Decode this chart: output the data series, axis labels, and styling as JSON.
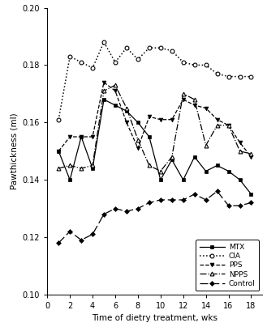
{
  "x": [
    1,
    2,
    3,
    4,
    5,
    6,
    7,
    8,
    9,
    10,
    11,
    12,
    13,
    14,
    15,
    16,
    17,
    18
  ],
  "MTX": [
    0.15,
    0.14,
    0.155,
    0.144,
    0.168,
    0.166,
    0.164,
    0.16,
    0.155,
    0.14,
    0.147,
    0.14,
    0.148,
    0.143,
    0.145,
    0.143,
    0.14,
    0.135
  ],
  "CIA": [
    0.161,
    0.183,
    0.181,
    0.179,
    0.188,
    0.181,
    0.186,
    0.182,
    0.186,
    0.186,
    0.185,
    0.181,
    0.18,
    0.18,
    0.177,
    0.176,
    0.176,
    0.176
  ],
  "PPS": [
    0.15,
    0.155,
    0.155,
    0.155,
    0.174,
    0.171,
    0.16,
    0.151,
    0.162,
    0.161,
    0.161,
    0.168,
    0.166,
    0.165,
    0.161,
    0.159,
    0.153,
    0.148
  ],
  "NPPS": [
    0.144,
    0.145,
    0.144,
    0.145,
    0.171,
    0.173,
    0.165,
    0.154,
    0.145,
    0.143,
    0.148,
    0.17,
    0.168,
    0.152,
    0.159,
    0.159,
    0.15,
    0.149
  ],
  "Control": [
    0.118,
    0.122,
    0.119,
    0.121,
    0.128,
    0.13,
    0.129,
    0.13,
    0.132,
    0.133,
    0.133,
    0.133,
    0.135,
    0.133,
    0.136,
    0.131,
    0.131,
    0.132
  ],
  "ylim": [
    0.1,
    0.2
  ],
  "yticks": [
    0.1,
    0.12,
    0.14,
    0.16,
    0.18,
    0.2
  ],
  "xticks": [
    0,
    2,
    4,
    6,
    8,
    10,
    12,
    14,
    16,
    18
  ],
  "xlabel": "Time of dietry treatment, wks",
  "ylabel": "Pawthickness (ml)"
}
